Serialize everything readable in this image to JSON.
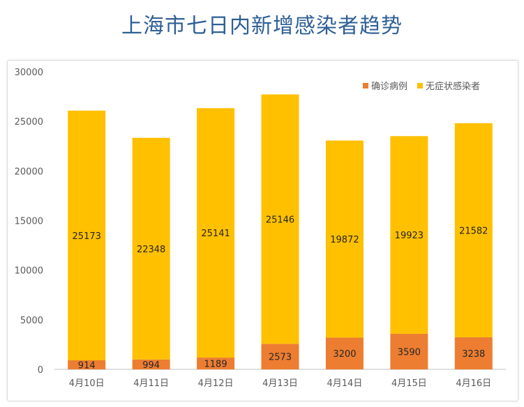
{
  "chart_data": {
    "type": "bar",
    "stacked": true,
    "title": "上海市七日内新增感染者趋势",
    "categories": [
      "4月10日",
      "4月11日",
      "4月12日",
      "4月13日",
      "4月14日",
      "4月15日",
      "4月16日"
    ],
    "series": [
      {
        "name": "确诊病例",
        "color": "#ed7d31",
        "values": [
          914,
          994,
          1189,
          2573,
          3200,
          3590,
          3238
        ]
      },
      {
        "name": "无症状感染者",
        "color": "#ffc000",
        "values": [
          25173,
          22348,
          25141,
          25146,
          19872,
          19923,
          21582
        ]
      }
    ],
    "yticks": [
      0,
      5000,
      10000,
      15000,
      20000,
      25000,
      30000
    ],
    "ylim": [
      0,
      30000
    ],
    "legend": "top-right",
    "xlabel": "",
    "ylabel": ""
  }
}
